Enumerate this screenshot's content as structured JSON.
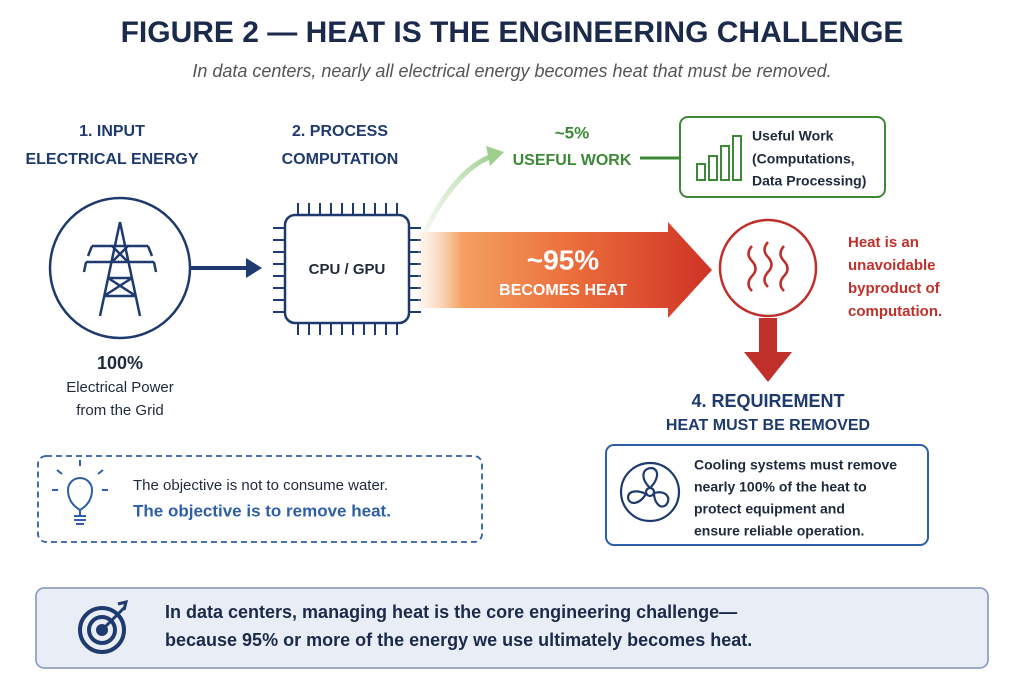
{
  "header": {
    "title": "FIGURE 2 — HEAT IS THE ENGINEERING CHALLENGE",
    "subtitle": "In data centers, nearly all electrical energy becomes heat that must be removed."
  },
  "input": {
    "step": "1. INPUT",
    "label": "ELECTRICAL ENERGY",
    "percent": "100%",
    "caption": [
      "Electrical Power",
      "from the Grid"
    ]
  },
  "process": {
    "step": "2. PROCESS",
    "label": "COMPUTATION",
    "chip": "CPU / GPU"
  },
  "useful_work": {
    "percent": "~5%",
    "label": "USEFUL WORK",
    "box": [
      "Useful Work",
      "(Computations,",
      "Data Processing)"
    ]
  },
  "heat": {
    "percent": "~95%",
    "label": "BECOMES HEAT",
    "note": [
      "Heat is an",
      "unavoidable",
      "byproduct of",
      "computation."
    ]
  },
  "requirement": {
    "step": "4. REQUIREMENT",
    "label": "HEAT MUST BE REMOVED",
    "box": [
      "Cooling systems must remove",
      "nearly 100% of the heat to",
      "protect equipment and",
      "ensure reliable operation."
    ]
  },
  "objective": [
    "The objective is not to consume water.",
    "The objective is to remove heat."
  ],
  "footer": [
    "In data centers, managing heat is the core engineering challenge—",
    "because 95% or more of the energy we use ultimately becomes heat."
  ]
}
